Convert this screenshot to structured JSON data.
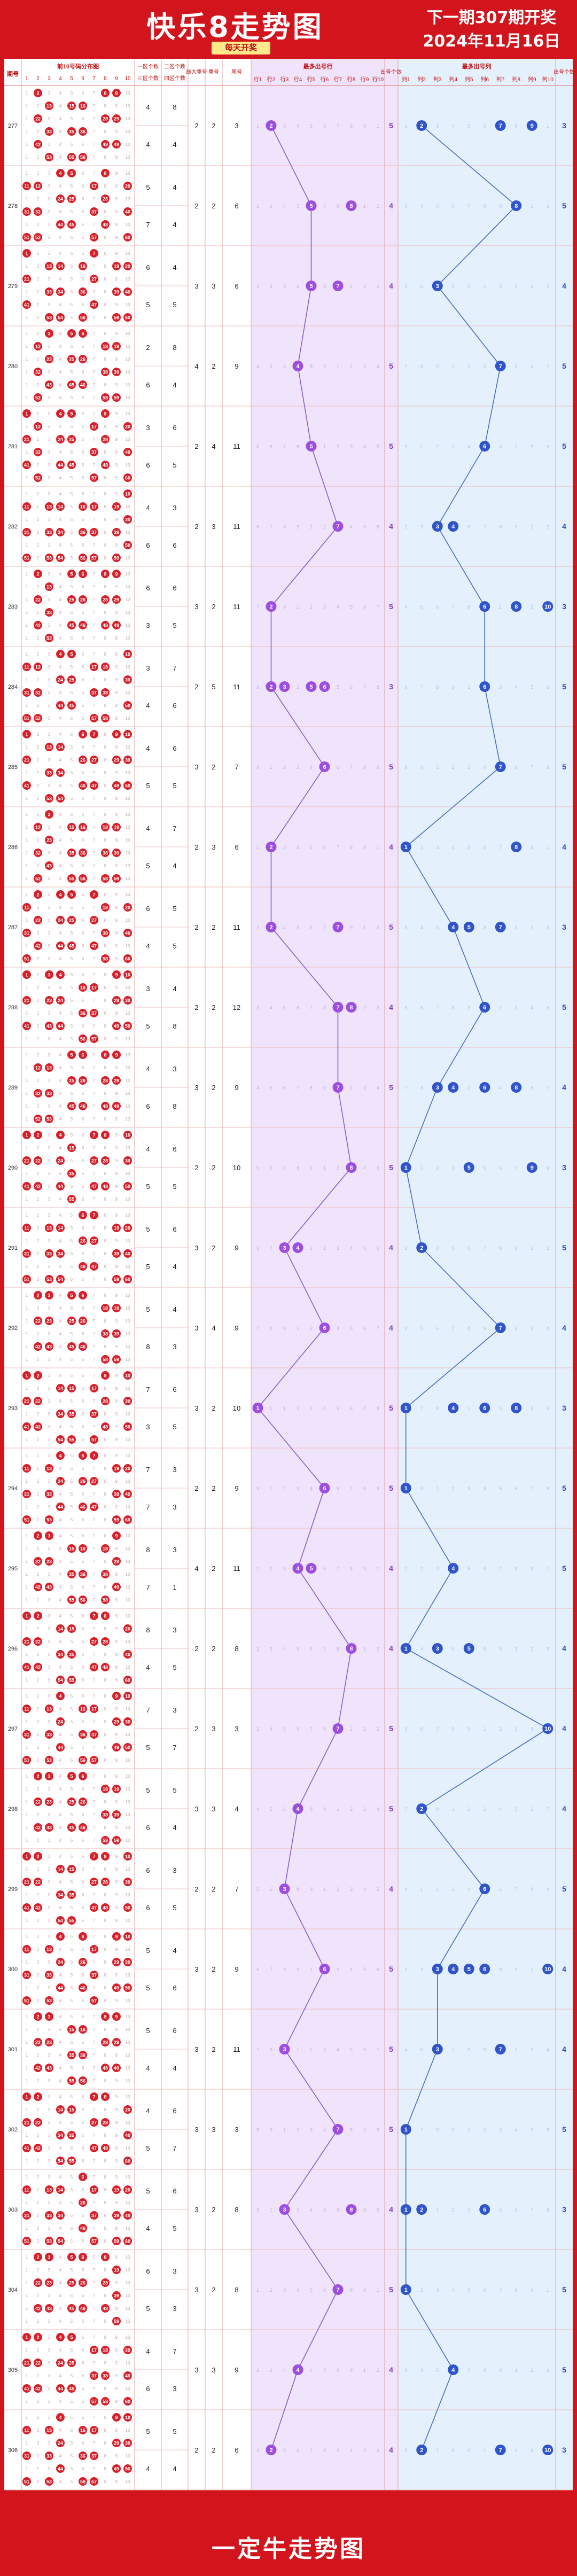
{
  "header": {
    "title": "快乐8走势图",
    "badge": "每天开奖",
    "next_draw": "下一期307期开奖",
    "date": "2024年11月16日"
  },
  "footer": {
    "text": "一定牛走势图"
  },
  "columns": {
    "period": "期号",
    "dist": "前10号码分布图",
    "dist_nums": [
      "1",
      "2",
      "3",
      "4",
      "5",
      "6",
      "7",
      "8",
      "9",
      "10"
    ],
    "zone1": "一区个数",
    "zone1b": "三区个数",
    "zone2": "二区个数",
    "zone2b": "四区个数",
    "bigsmall": "最大重号",
    "bigsmall2": "重号",
    "tail": "尾号",
    "mid": "最多出号行",
    "mid_labels": [
      "行1",
      "行2",
      "行3",
      "行4",
      "行5",
      "行6",
      "行7",
      "行8",
      "行9",
      "行10"
    ],
    "cnt": "出号个数",
    "right": "最多出号列",
    "right_labels": [
      "列1",
      "列2",
      "列3",
      "列4",
      "列5",
      "列6",
      "列7",
      "列8",
      "列9",
      "列10"
    ],
    "cnt2": "出号个数"
  },
  "chart_data": {
    "type": "table",
    "periods": [
      277,
      278,
      279,
      280,
      281,
      282,
      283,
      284,
      285,
      286,
      287,
      288,
      289,
      290,
      291,
      292,
      293,
      294,
      295,
      296,
      297,
      298,
      299,
      300,
      301,
      302,
      303,
      304,
      305,
      306
    ],
    "zone1": [
      4,
      5,
      6,
      2,
      3,
      4,
      6,
      3,
      4,
      4,
      6,
      3,
      4,
      4,
      5,
      5,
      7,
      7,
      8,
      8,
      7,
      5,
      6,
      5,
      5,
      4,
      5,
      6,
      4,
      5
    ],
    "zone3": [
      4,
      7,
      5,
      6,
      6,
      6,
      3,
      4,
      5,
      5,
      4,
      5,
      6,
      5,
      5,
      8,
      3,
      7,
      7,
      4,
      5,
      6,
      6,
      5,
      4,
      5,
      4,
      5,
      6,
      4
    ],
    "zone2": [
      8,
      4,
      4,
      8,
      6,
      3,
      6,
      7,
      6,
      7,
      5,
      4,
      3,
      6,
      6,
      4,
      6,
      3,
      3,
      3,
      3,
      5,
      3,
      4,
      6,
      6,
      6,
      3,
      7,
      5
    ],
    "zone4": [
      4,
      4,
      5,
      4,
      5,
      6,
      5,
      6,
      5,
      4,
      5,
      8,
      8,
      5,
      4,
      3,
      5,
      3,
      1,
      5,
      7,
      4,
      5,
      6,
      4,
      7,
      5,
      3,
      3,
      4
    ],
    "max_a": [
      2,
      2,
      3,
      4,
      2,
      2,
      3,
      2,
      3,
      2,
      2,
      2,
      3,
      2,
      3,
      3,
      3,
      2,
      4,
      2,
      2,
      3,
      2,
      3,
      3,
      3,
      3,
      3,
      3,
      2
    ],
    "max_b": [
      2,
      2,
      3,
      2,
      4,
      3,
      2,
      5,
      2,
      3,
      2,
      2,
      2,
      2,
      2,
      4,
      2,
      2,
      2,
      2,
      3,
      3,
      2,
      2,
      2,
      3,
      2,
      2,
      3,
      2
    ],
    "tail": [
      3,
      6,
      6,
      9,
      11,
      11,
      11,
      11,
      7,
      6,
      11,
      12,
      9,
      10,
      9,
      9,
      10,
      9,
      11,
      8,
      3,
      4,
      7,
      9,
      11,
      3,
      8,
      8,
      9,
      6
    ],
    "row_max": [
      [
        1
      ],
      [
        4,
        7
      ],
      [
        4,
        6
      ],
      [
        3
      ],
      [
        4
      ],
      [
        6
      ],
      [
        1
      ],
      [
        1,
        2,
        4,
        5
      ],
      [
        5
      ],
      [
        1
      ],
      [
        1,
        6
      ],
      [
        6,
        7
      ],
      [
        6
      ],
      [
        7
      ],
      [
        2,
        3
      ],
      [
        5
      ],
      [
        0
      ],
      [
        5
      ],
      [
        3,
        4
      ],
      [
        7
      ],
      [
        6
      ],
      [
        3
      ],
      [
        2
      ],
      [
        5
      ],
      [
        2
      ],
      [
        6
      ],
      [
        2,
        7
      ],
      [
        6
      ],
      [
        3
      ],
      [
        1
      ]
    ],
    "row_cnt": [
      5,
      4,
      4,
      5,
      5,
      4,
      5,
      3,
      5,
      4,
      5,
      4,
      5,
      5,
      4,
      4,
      5,
      5,
      4,
      4,
      5,
      5,
      4,
      5,
      5,
      5,
      4,
      5,
      4,
      4
    ],
    "col_max": [
      [
        1,
        6,
        8
      ],
      [
        7
      ],
      [
        2
      ],
      [
        6
      ],
      [
        5
      ],
      [
        2,
        3
      ],
      [
        5,
        7,
        9
      ],
      [
        5
      ],
      [
        6
      ],
      [
        0,
        7
      ],
      [
        3,
        4,
        6
      ],
      [
        5
      ],
      [
        2,
        3,
        5,
        7
      ],
      [
        0,
        4,
        8
      ],
      [
        1
      ],
      [
        6
      ],
      [
        0,
        3,
        5,
        7
      ],
      [
        0
      ],
      [
        3
      ],
      [
        0,
        2,
        4
      ],
      [
        9
      ],
      [
        1
      ],
      [
        5
      ],
      [
        2,
        3,
        4,
        5,
        9
      ],
      [
        2,
        6
      ],
      [
        0
      ],
      [
        0,
        1,
        5
      ],
      [
        0
      ],
      [
        3
      ],
      [
        1,
        6,
        9
      ]
    ],
    "col_cnt": [
      3,
      5,
      4,
      5,
      5,
      4,
      3,
      5,
      5,
      4,
      3,
      5,
      4,
      3,
      5,
      4,
      3,
      5,
      5,
      4,
      4,
      4,
      5,
      4,
      4,
      5,
      3,
      5,
      5,
      3
    ],
    "dist_grid": [
      [
        0,
        1,
        1,
        0,
        1,
        0,
        0,
        1,
        0,
        1
      ],
      [
        1,
        0,
        1,
        1,
        0,
        0,
        1,
        1,
        1,
        0
      ],
      [
        0,
        1,
        1,
        0,
        1,
        0,
        0,
        1,
        1,
        0
      ],
      [
        1,
        0,
        0,
        1,
        0,
        1,
        0,
        0,
        1,
        1
      ],
      [
        0,
        0,
        1,
        1,
        0,
        1,
        1,
        1,
        0,
        0
      ],
      [
        1,
        0,
        1,
        0,
        1,
        0,
        1,
        0,
        1,
        1
      ],
      [
        0,
        1,
        1,
        1,
        0,
        1,
        0,
        1,
        0,
        0
      ],
      [
        1,
        0,
        1,
        1,
        0,
        0,
        1,
        0,
        1,
        1
      ],
      [
        0,
        1,
        1,
        0,
        1,
        1,
        0,
        1,
        0,
        1
      ],
      [
        1,
        0,
        0,
        1,
        1,
        0,
        1,
        0,
        1,
        0
      ],
      [
        1,
        1,
        1,
        1,
        0,
        1,
        0,
        0,
        1,
        0
      ],
      [
        0,
        1,
        0,
        1,
        1,
        0,
        1,
        0,
        0,
        1
      ],
      [
        1,
        0,
        1,
        1,
        0,
        1,
        1,
        1,
        0,
        0
      ],
      [
        0,
        1,
        1,
        1,
        1,
        0,
        0,
        1,
        0,
        1
      ],
      [
        1,
        0,
        1,
        0,
        1,
        1,
        0,
        1,
        1,
        0
      ],
      [
        1,
        1,
        0,
        1,
        0,
        1,
        1,
        0,
        1,
        0
      ],
      [
        0,
        1,
        1,
        0,
        1,
        0,
        1,
        1,
        0,
        1
      ],
      [
        1,
        0,
        1,
        1,
        0,
        1,
        0,
        1,
        1,
        0
      ],
      [
        1,
        1,
        0,
        1,
        1,
        0,
        1,
        0,
        0,
        1
      ],
      [
        0,
        1,
        1,
        0,
        1,
        1,
        0,
        1,
        1,
        0
      ],
      [
        1,
        0,
        1,
        1,
        1,
        0,
        1,
        0,
        0,
        1
      ],
      [
        1,
        1,
        0,
        1,
        0,
        1,
        1,
        0,
        1,
        0
      ],
      [
        0,
        1,
        1,
        0,
        1,
        1,
        0,
        1,
        1,
        1
      ],
      [
        1,
        0,
        1,
        1,
        0,
        1,
        1,
        0,
        0,
        1
      ],
      [
        1,
        1,
        0,
        1,
        1,
        0,
        1,
        1,
        0,
        0
      ],
      [
        0,
        1,
        1,
        0,
        1,
        1,
        0,
        1,
        1,
        0
      ],
      [
        1,
        0,
        1,
        0,
        1,
        1,
        1,
        0,
        1,
        0
      ],
      [
        1,
        1,
        0,
        1,
        0,
        1,
        0,
        1,
        1,
        1
      ],
      [
        0,
        1,
        1,
        1,
        0,
        1,
        1,
        0,
        1,
        0
      ],
      [
        1,
        0,
        1,
        1,
        1,
        0,
        1,
        1,
        0,
        1
      ]
    ]
  },
  "colors": {
    "bg": "#d2141c",
    "red": "#d8202a",
    "purple": "#9d4ee0",
    "blue": "#2f55c9",
    "midbg": "#efe4fb",
    "rightbg": "#e4f1fd"
  }
}
